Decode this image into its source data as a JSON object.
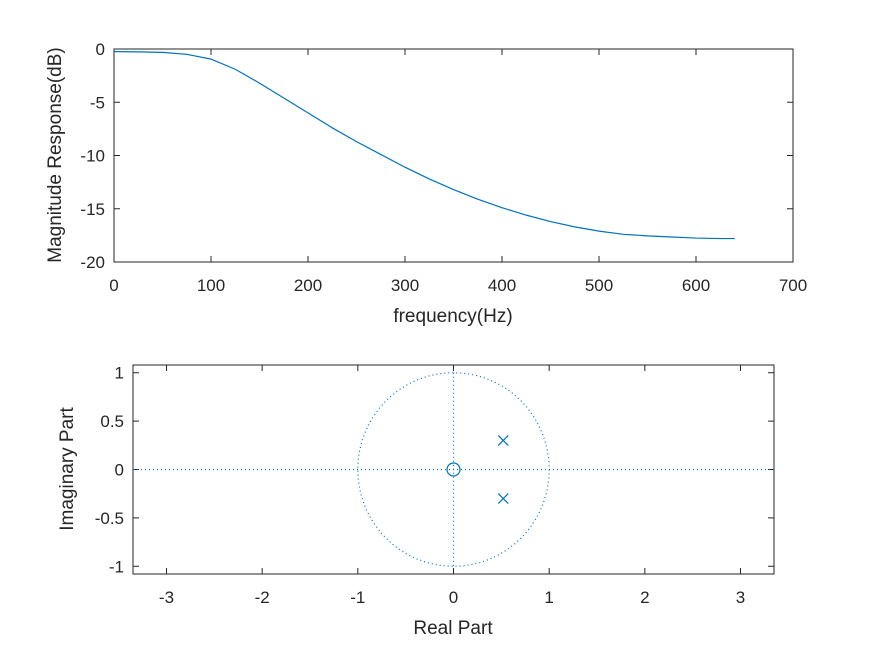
{
  "chart_data": [
    {
      "type": "line",
      "xlabel": "frequency(Hz)",
      "ylabel": "Magnitude Response(dB)",
      "xlim": [
        0,
        700
      ],
      "ylim": [
        -20,
        0
      ],
      "xticks": [
        0,
        100,
        200,
        300,
        400,
        500,
        600,
        700
      ],
      "yticks": [
        0,
        -5,
        -10,
        -15,
        -20
      ],
      "line_color": "#0072BD",
      "series": [
        {
          "x": [
            0,
            25,
            50,
            75,
            100,
            125,
            150,
            175,
            200,
            225,
            250,
            275,
            300,
            325,
            350,
            375,
            400,
            425,
            450,
            475,
            500,
            525,
            550,
            575,
            600,
            625,
            640
          ],
          "y": [
            -0.25,
            -0.27,
            -0.32,
            -0.5,
            -0.95,
            -1.9,
            -3.2,
            -4.6,
            -6.0,
            -7.4,
            -8.7,
            -9.9,
            -11.1,
            -12.2,
            -13.2,
            -14.1,
            -14.9,
            -15.6,
            -16.2,
            -16.7,
            -17.1,
            -17.4,
            -17.55,
            -17.65,
            -17.75,
            -17.8,
            -17.8
          ]
        }
      ]
    },
    {
      "type": "scatter",
      "xlabel": "Real Part",
      "ylabel": "Imaginary Part",
      "xlim": [
        -3.35,
        3.35
      ],
      "ylim": [
        -1.08,
        1.08
      ],
      "xticks": [
        -3,
        -2,
        -1,
        0,
        1,
        2,
        3
      ],
      "yticks": [
        1,
        0.5,
        0,
        -0.5,
        -1
      ],
      "unit_circle": true,
      "zeros": [
        [
          0,
          0
        ]
      ],
      "poles": [
        [
          0.52,
          0.3
        ],
        [
          0.52,
          -0.3
        ]
      ],
      "marker_color": "#0072BD"
    }
  ]
}
